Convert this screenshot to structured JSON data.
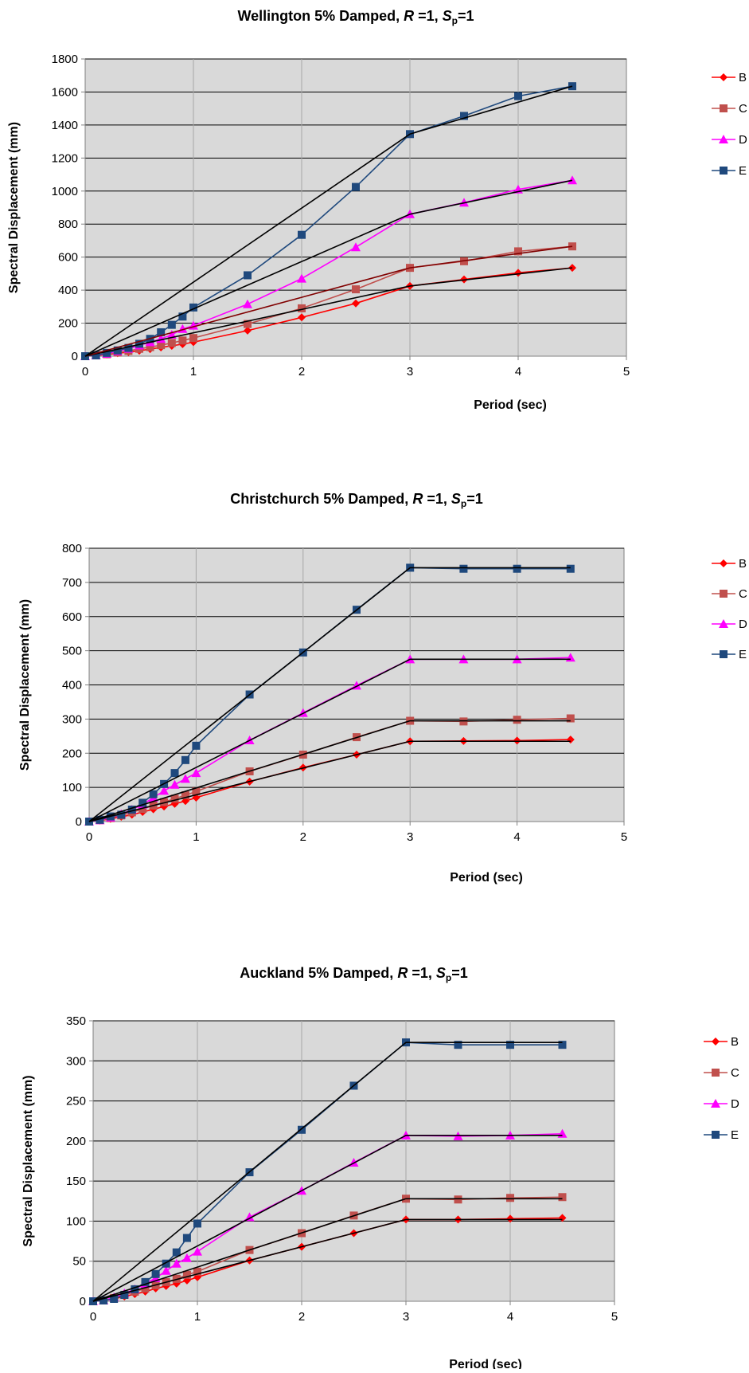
{
  "chart_data": [
    {
      "type": "line",
      "title": {
        "pre": "Wellington 5%  Damped, ",
        "r": "R",
        "mid": " =1, ",
        "s": "S",
        "sub": "p",
        "post": "=1"
      },
      "xlabel": "Period (sec)",
      "ylabel": "Spectral Displacement  (mm)",
      "xlim": [
        0,
        5
      ],
      "ylim": [
        0,
        1800
      ],
      "xticks": [
        0,
        1,
        2,
        3,
        4,
        5
      ],
      "yticks": [
        0,
        200,
        400,
        600,
        800,
        1000,
        1200,
        1400,
        1600,
        1800
      ],
      "grid": true,
      "legend_position": "right",
      "x": [
        0,
        0.1,
        0.2,
        0.3,
        0.4,
        0.5,
        0.6,
        0.7,
        0.8,
        0.9,
        1.0,
        1.5,
        2.0,
        2.5,
        3.0,
        3.5,
        4.0,
        4.5
      ],
      "series": [
        {
          "name": "B",
          "color": "#ff0000",
          "marker": "diamond",
          "values": [
            0,
            4,
            10,
            18,
            25,
            33,
            43,
            53,
            63,
            73,
            85,
            155,
            235,
            320,
            425,
            465,
            505,
            535
          ]
        },
        {
          "name": "C",
          "color": "#c0504d",
          "marker": "square",
          "values": [
            0,
            6,
            12,
            22,
            32,
            45,
            55,
            67,
            80,
            95,
            110,
            195,
            290,
            405,
            535,
            575,
            635,
            665
          ]
        },
        {
          "name": "D",
          "color": "#ff00ff",
          "marker": "triangle",
          "values": [
            0,
            5,
            15,
            30,
            45,
            65,
            85,
            105,
            130,
            165,
            185,
            315,
            470,
            660,
            860,
            930,
            1010,
            1065
          ]
        },
        {
          "name": "E",
          "color": "#1f497d",
          "marker": "square",
          "values": [
            0,
            5,
            20,
            35,
            50,
            75,
            105,
            145,
            190,
            240,
            295,
            490,
            735,
            1025,
            1345,
            1455,
            1575,
            1635
          ]
        }
      ],
      "envelopes": [
        {
          "color": "#000000",
          "x": [
            0,
            3,
            4.5
          ],
          "values": [
            0,
            425,
            535
          ]
        },
        {
          "color": "#800000",
          "x": [
            0,
            3,
            4.5
          ],
          "values": [
            0,
            535,
            665
          ]
        },
        {
          "color": "#000000",
          "x": [
            0,
            3,
            4.5
          ],
          "values": [
            0,
            860,
            1065
          ]
        },
        {
          "color": "#000000",
          "x": [
            0,
            3,
            4.5
          ],
          "values": [
            0,
            1345,
            1635
          ]
        }
      ]
    },
    {
      "type": "line",
      "title": {
        "pre": "Christchurch 5%  Damped, ",
        "r": "R",
        "mid": " =1, ",
        "s": "S",
        "sub": "p",
        "post": "=1"
      },
      "xlabel": "Period (sec)",
      "ylabel": "Spectral Displacement  (mm)",
      "xlim": [
        0,
        5
      ],
      "ylim": [
        0,
        800
      ],
      "xticks": [
        0,
        1,
        2,
        3,
        4,
        5
      ],
      "yticks": [
        0,
        100,
        200,
        300,
        400,
        500,
        600,
        700,
        800
      ],
      "grid": true,
      "legend_position": "right",
      "x": [
        0,
        0.1,
        0.2,
        0.3,
        0.4,
        0.5,
        0.6,
        0.7,
        0.8,
        0.9,
        1.0,
        1.5,
        2.0,
        2.5,
        3.0,
        3.5,
        4.0,
        4.5
      ],
      "series": [
        {
          "name": "B",
          "color": "#ff0000",
          "marker": "diamond",
          "values": [
            0,
            3,
            8,
            14,
            20,
            28,
            36,
            44,
            52,
            60,
            70,
            117,
            158,
            196,
            235,
            236,
            237,
            240
          ]
        },
        {
          "name": "C",
          "color": "#c0504d",
          "marker": "square",
          "values": [
            0,
            4,
            10,
            18,
            27,
            37,
            47,
            57,
            67,
            77,
            88,
            147,
            196,
            247,
            295,
            293,
            298,
            302
          ]
        },
        {
          "name": "D",
          "color": "#ff00ff",
          "marker": "triangle",
          "values": [
            0,
            4,
            12,
            22,
            35,
            50,
            70,
            90,
            108,
            125,
            142,
            238,
            318,
            398,
            475,
            475,
            475,
            480
          ]
        },
        {
          "name": "E",
          "color": "#1f497d",
          "marker": "square",
          "values": [
            0,
            5,
            15,
            20,
            35,
            55,
            80,
            110,
            142,
            180,
            222,
            372,
            495,
            620,
            743,
            740,
            740,
            740
          ]
        }
      ],
      "envelopes": [
        {
          "color": "#000000",
          "x": [
            0,
            3,
            4.5
          ],
          "values": [
            0,
            235,
            235
          ]
        },
        {
          "color": "#000000",
          "x": [
            0,
            3,
            4.5
          ],
          "values": [
            0,
            295,
            295
          ]
        },
        {
          "color": "#000000",
          "x": [
            0,
            3,
            4.5
          ],
          "values": [
            0,
            475,
            475
          ]
        },
        {
          "color": "#000000",
          "x": [
            0,
            3,
            4.5
          ],
          "values": [
            0,
            743,
            743
          ]
        }
      ]
    },
    {
      "type": "line",
      "title": {
        "pre": "Auckland 5%  Damped, ",
        "r": "R",
        "mid": " =1, ",
        "s": "S",
        "sub": "p",
        "post": "=1"
      },
      "xlabel": "Period (sec)",
      "ylabel": "Spectral Displacement  (mm)",
      "xlim": [
        0,
        5
      ],
      "ylim": [
        0,
        350
      ],
      "xticks": [
        0,
        1,
        2,
        3,
        4,
        5
      ],
      "yticks": [
        0,
        50,
        100,
        150,
        200,
        250,
        300,
        350
      ],
      "grid": true,
      "legend_position": "right",
      "x": [
        0,
        0.1,
        0.2,
        0.3,
        0.4,
        0.5,
        0.6,
        0.7,
        0.8,
        0.9,
        1.0,
        1.5,
        2.0,
        2.5,
        3.0,
        3.5,
        4.0,
        4.5
      ],
      "series": [
        {
          "name": "B",
          "color": "#ff0000",
          "marker": "diamond",
          "values": [
            0,
            1,
            3,
            6,
            9,
            12,
            16,
            19,
            22,
            26,
            30,
            51,
            68,
            85,
            102,
            102,
            103,
            104
          ]
        },
        {
          "name": "C",
          "color": "#c0504d",
          "marker": "square",
          "values": [
            0,
            1,
            4,
            8,
            12,
            16,
            20,
            24,
            28,
            33,
            37,
            64,
            85,
            107,
            128,
            127,
            129,
            130
          ]
        },
        {
          "name": "D",
          "color": "#ff00ff",
          "marker": "triangle",
          "values": [
            0,
            1,
            5,
            10,
            15,
            22,
            29,
            38,
            47,
            54,
            62,
            105,
            138,
            173,
            207,
            206,
            207,
            209
          ]
        },
        {
          "name": "E",
          "color": "#1f497d",
          "marker": "square",
          "values": [
            0,
            1,
            3,
            8,
            15,
            24,
            34,
            47,
            61,
            79,
            97,
            161,
            214,
            269,
            323,
            320,
            320,
            320
          ]
        }
      ],
      "envelopes": [
        {
          "color": "#000000",
          "x": [
            0,
            3,
            4.5
          ],
          "values": [
            0,
            102,
            102
          ]
        },
        {
          "color": "#000000",
          "x": [
            0,
            3,
            4.5
          ],
          "values": [
            0,
            128,
            128
          ]
        },
        {
          "color": "#000000",
          "x": [
            0,
            3,
            4.5
          ],
          "values": [
            0,
            207,
            207
          ]
        },
        {
          "color": "#000000",
          "x": [
            0,
            3,
            4.5
          ],
          "values": [
            0,
            323,
            323
          ]
        }
      ]
    }
  ]
}
